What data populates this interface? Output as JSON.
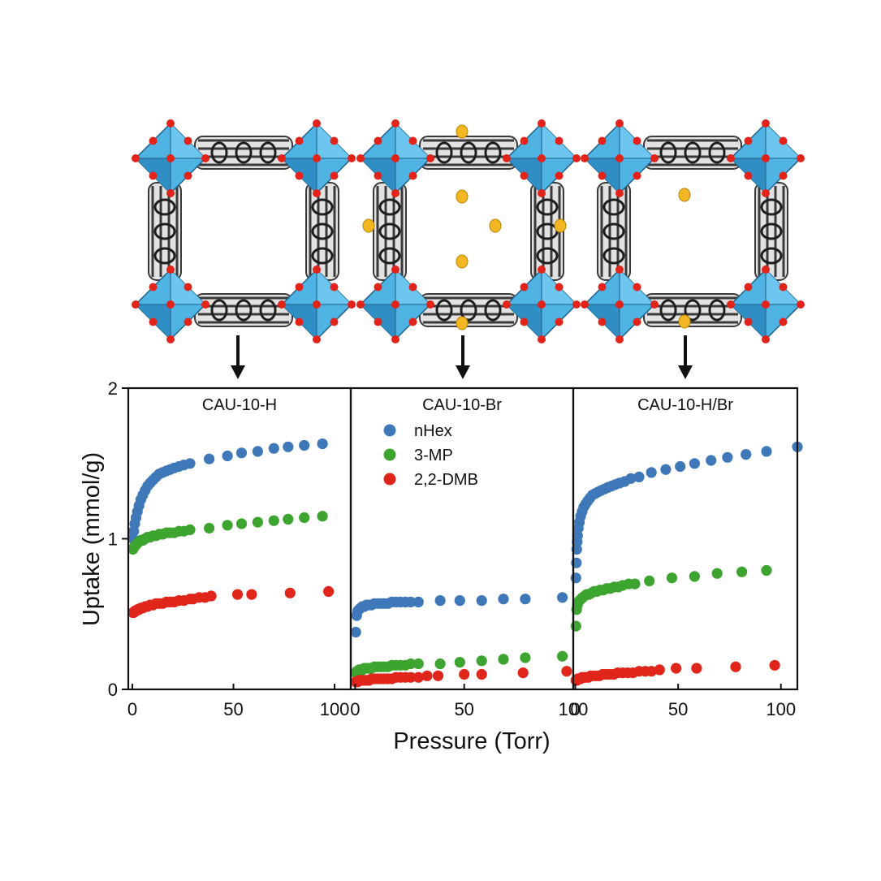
{
  "figure": {
    "structures": [
      {
        "variant": "CAU-10-H",
        "substituents": "none"
      },
      {
        "variant": "CAU-10-Br",
        "substituents": "all"
      },
      {
        "variant": "CAU-10-H/Br",
        "substituents": "partial"
      }
    ],
    "colors": {
      "polyhedron": "#4fb3e3",
      "polyhedron_dark": "#2f8fc4",
      "oxygen": "#e2231a",
      "carbon": "#3a3a3a",
      "bromine": "#f2b722",
      "arrow": "#111111"
    },
    "xlabel": "Pressure (Torr)",
    "ylabel": "Uptake (mmol/g)",
    "legend": {
      "entries": [
        "nHex",
        "3-MP",
        "2,2-DMB"
      ],
      "placement": "top-left of middle panel"
    }
  },
  "chart_data": [
    {
      "type": "scatter",
      "title": "CAU-10-H",
      "xlabel": "Pressure (Torr)",
      "ylabel": "Uptake (mmol/g)",
      "xlim": [
        -2,
        108
      ],
      "ylim": [
        0,
        2
      ],
      "xticks": [
        0,
        50,
        100
      ],
      "xtick_labels": [
        "0",
        "50",
        "100"
      ],
      "yticks": [
        0,
        1,
        2
      ],
      "ytick_labels": [
        "0",
        "1",
        "2"
      ],
      "series": [
        {
          "name": "nHex",
          "color": "#3f78b9",
          "x": [
            0.3,
            0.7,
            1.2,
            1.8,
            2.5,
            3.3,
            4.2,
            5.2,
            6.3,
            7.5,
            8.8,
            10.2,
            11.7,
            13.3,
            15,
            16.8,
            18.7,
            20.7,
            23,
            25.5,
            28.5,
            38,
            47,
            54,
            62,
            70,
            77,
            85,
            94
          ],
          "y": [
            1.0,
            1.05,
            1.1,
            1.14,
            1.18,
            1.22,
            1.26,
            1.29,
            1.32,
            1.35,
            1.37,
            1.39,
            1.41,
            1.43,
            1.44,
            1.45,
            1.46,
            1.47,
            1.48,
            1.49,
            1.5,
            1.53,
            1.55,
            1.57,
            1.58,
            1.6,
            1.61,
            1.62,
            1.63
          ]
        },
        {
          "name": "3-MP",
          "color": "#3da52f",
          "x": [
            0.3,
            0.7,
            1.2,
            1.8,
            2.5,
            3.3,
            4.2,
            5.2,
            6.3,
            7.5,
            8.8,
            10.2,
            11.7,
            13.3,
            15,
            16.8,
            18.7,
            20.7,
            23,
            25.5,
            28.5,
            38,
            47,
            54,
            62,
            70,
            77,
            85,
            94
          ],
          "y": [
            0.93,
            0.94,
            0.95,
            0.96,
            0.97,
            0.98,
            0.99,
            0.99,
            1.0,
            1.01,
            1.01,
            1.02,
            1.02,
            1.03,
            1.03,
            1.04,
            1.04,
            1.04,
            1.05,
            1.05,
            1.06,
            1.07,
            1.09,
            1.1,
            1.11,
            1.12,
            1.13,
            1.14,
            1.15
          ]
        },
        {
          "name": "2,2-DMB",
          "color": "#e0251b",
          "x": [
            0.3,
            0.7,
            1.2,
            1.8,
            2.5,
            3.3,
            4.2,
            5.2,
            6.3,
            7.5,
            8.8,
            10.2,
            11.7,
            13.3,
            15,
            16.8,
            18.7,
            20.7,
            23,
            25.5,
            28.5,
            30,
            33,
            36,
            39,
            52,
            59,
            78,
            97
          ],
          "y": [
            0.51,
            0.51,
            0.52,
            0.52,
            0.53,
            0.53,
            0.54,
            0.54,
            0.55,
            0.55,
            0.56,
            0.56,
            0.57,
            0.57,
            0.57,
            0.58,
            0.58,
            0.58,
            0.59,
            0.59,
            0.6,
            0.6,
            0.61,
            0.61,
            0.62,
            0.63,
            0.63,
            0.64,
            0.65
          ]
        }
      ]
    },
    {
      "type": "scatter",
      "title": "CAU-10-Br",
      "xlabel": "Pressure (Torr)",
      "ylabel": "Uptake (mmol/g)",
      "xlim": [
        -2,
        100
      ],
      "ylim": [
        0,
        2
      ],
      "xticks": [
        0,
        50,
        100
      ],
      "xtick_labels": [
        "0",
        "50",
        "100"
      ],
      "series": [
        {
          "name": "nHex",
          "color": "#3f78b9",
          "x": [
            0.3,
            0.7,
            1.2,
            1.8,
            2.5,
            3.3,
            4.2,
            5.2,
            6.3,
            7.5,
            8.8,
            10.2,
            11.7,
            13.3,
            15,
            16.8,
            18.7,
            20.7,
            23,
            25.5,
            29,
            39,
            48,
            58,
            68,
            78,
            95
          ],
          "y": [
            0.38,
            0.49,
            0.52,
            0.53,
            0.54,
            0.55,
            0.55,
            0.56,
            0.56,
            0.56,
            0.57,
            0.57,
            0.57,
            0.57,
            0.57,
            0.58,
            0.58,
            0.58,
            0.58,
            0.58,
            0.58,
            0.59,
            0.59,
            0.59,
            0.6,
            0.6,
            0.61
          ]
        },
        {
          "name": "3-MP",
          "color": "#3da52f",
          "x": [
            0.3,
            0.7,
            1.2,
            1.8,
            2.5,
            3.3,
            4.2,
            5.2,
            6.3,
            7.5,
            8.8,
            10.2,
            11.7,
            13.3,
            15,
            16.8,
            18.7,
            20.7,
            23,
            25.5,
            29,
            39,
            48,
            58,
            68,
            78,
            95
          ],
          "y": [
            0.11,
            0.12,
            0.12,
            0.13,
            0.13,
            0.13,
            0.14,
            0.14,
            0.14,
            0.14,
            0.15,
            0.15,
            0.15,
            0.15,
            0.15,
            0.16,
            0.16,
            0.16,
            0.16,
            0.17,
            0.17,
            0.17,
            0.18,
            0.19,
            0.2,
            0.21,
            0.22
          ]
        },
        {
          "name": "2,2-DMB",
          "color": "#e0251b",
          "x": [
            0.3,
            0.7,
            1.2,
            1.8,
            2.5,
            3.3,
            4.2,
            5.2,
            6.3,
            7.5,
            8.8,
            10.2,
            11.7,
            13.3,
            15,
            16.8,
            18.7,
            20.7,
            23,
            25.5,
            29,
            33,
            38,
            50,
            58,
            77,
            97
          ],
          "y": [
            0.05,
            0.05,
            0.05,
            0.06,
            0.06,
            0.06,
            0.06,
            0.06,
            0.06,
            0.07,
            0.07,
            0.07,
            0.07,
            0.07,
            0.07,
            0.07,
            0.08,
            0.08,
            0.08,
            0.08,
            0.08,
            0.09,
            0.09,
            0.1,
            0.1,
            0.11,
            0.12
          ]
        }
      ]
    },
    {
      "type": "scatter",
      "title": "CAU-10-H/Br",
      "xlabel": "Pressure (Torr)",
      "ylabel": "Uptake (mmol/g)",
      "xlim": [
        -1,
        108
      ],
      "ylim": [
        0,
        2
      ],
      "xticks": [
        0,
        50,
        100
      ],
      "xtick_labels": [
        "0",
        "50",
        "100"
      ],
      "series": [
        {
          "name": "nHex",
          "color": "#3f78b9",
          "x": [
            0.3,
            0.5,
            0.7,
            0.9,
            1.1,
            1.5,
            2.0,
            2.6,
            3.3,
            4.1,
            5.0,
            6.0,
            7.1,
            8.3,
            9.6,
            11.0,
            12.5,
            14.1,
            15.8,
            17.6,
            19.5,
            21.5,
            24,
            27,
            31,
            37,
            44,
            51,
            58,
            66,
            74,
            83,
            93,
            108
          ],
          "y": [
            0.74,
            0.84,
            0.93,
            0.98,
            1.02,
            1.07,
            1.11,
            1.15,
            1.18,
            1.21,
            1.23,
            1.25,
            1.27,
            1.29,
            1.3,
            1.31,
            1.32,
            1.33,
            1.34,
            1.35,
            1.36,
            1.37,
            1.38,
            1.4,
            1.41,
            1.44,
            1.46,
            1.48,
            1.5,
            1.52,
            1.54,
            1.56,
            1.58,
            1.61
          ]
        },
        {
          "name": "3-MP",
          "color": "#3da52f",
          "x": [
            0.3,
            0.6,
            1.0,
            1.5,
            2.1,
            2.8,
            3.6,
            4.5,
            5.5,
            6.6,
            7.8,
            9.1,
            10.5,
            12.0,
            13.6,
            15.3,
            17.1,
            19.0,
            21.0,
            23,
            26,
            29,
            36,
            47,
            58,
            69,
            81,
            93
          ],
          "y": [
            0.42,
            0.53,
            0.56,
            0.58,
            0.59,
            0.6,
            0.61,
            0.62,
            0.63,
            0.63,
            0.64,
            0.65,
            0.65,
            0.66,
            0.66,
            0.67,
            0.67,
            0.68,
            0.68,
            0.69,
            0.7,
            0.7,
            0.72,
            0.74,
            0.75,
            0.77,
            0.78,
            0.79
          ]
        },
        {
          "name": "2,2-DMB",
          "color": "#e0251b",
          "x": [
            0.3,
            0.7,
            1.2,
            1.8,
            2.5,
            3.3,
            4.2,
            5.2,
            6.3,
            7.5,
            8.8,
            10.2,
            11.7,
            13.3,
            15,
            16.8,
            18.7,
            20.7,
            23,
            25.5,
            28,
            31,
            34,
            37,
            41,
            49,
            59,
            78,
            97
          ],
          "y": [
            0.06,
            0.06,
            0.07,
            0.07,
            0.07,
            0.08,
            0.08,
            0.08,
            0.08,
            0.09,
            0.09,
            0.09,
            0.09,
            0.1,
            0.1,
            0.1,
            0.1,
            0.11,
            0.11,
            0.11,
            0.11,
            0.12,
            0.12,
            0.12,
            0.13,
            0.14,
            0.14,
            0.15,
            0.16
          ]
        }
      ]
    }
  ]
}
